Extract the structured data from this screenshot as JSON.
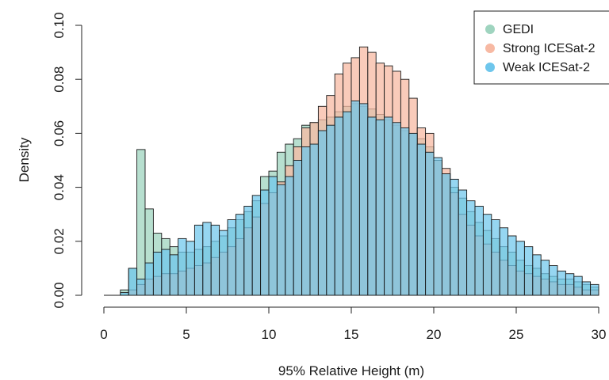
{
  "chart_data": {
    "type": "bar",
    "subtype": "overlaid histogram",
    "xlabel": "95% Relative Height (m)",
    "ylabel": "Density",
    "xlim": [
      0,
      30
    ],
    "ylim": [
      0,
      0.1
    ],
    "xticks": [
      "0",
      "5",
      "10",
      "15",
      "20",
      "25",
      "30"
    ],
    "yticks": [
      "0.00",
      "0.02",
      "0.04",
      "0.06",
      "0.08",
      "0.10"
    ],
    "bin_width": 0.5,
    "grid": false,
    "legend_position": "top-right",
    "series": [
      {
        "name": "GEDI",
        "color": "#9fd4bf",
        "x": [
          0.25,
          0.75,
          1.25,
          1.75,
          2.25,
          2.75,
          3.25,
          3.75,
          4.25,
          4.75,
          5.25,
          5.75,
          6.25,
          6.75,
          7.25,
          7.75,
          8.25,
          8.75,
          9.25,
          9.75,
          10.25,
          10.75,
          11.25,
          11.75,
          12.25,
          12.75,
          13.25,
          13.75,
          14.25,
          14.75,
          15.25,
          15.75,
          16.25,
          16.75,
          17.25,
          17.75,
          18.25,
          18.75,
          19.25,
          19.75,
          20.25,
          20.75,
          21.25,
          21.75,
          22.25,
          22.75,
          23.25,
          23.75,
          24.25,
          24.75,
          25.25,
          25.75,
          26.25,
          26.75,
          27.25,
          27.75,
          28.25,
          28.75,
          29.25,
          29.75
        ],
        "values": [
          0,
          0,
          0.002,
          0.01,
          0.054,
          0.032,
          0.023,
          0.021,
          0.018,
          0.016,
          0.016,
          0.017,
          0.018,
          0.02,
          0.022,
          0.025,
          0.028,
          0.031,
          0.035,
          0.044,
          0.046,
          0.053,
          0.056,
          0.058,
          0.063,
          0.064,
          0.065,
          0.066,
          0.068,
          0.07,
          0.071,
          0.07,
          0.069,
          0.067,
          0.065,
          0.063,
          0.061,
          0.06,
          0.058,
          0.055,
          0.05,
          0.045,
          0.04,
          0.036,
          0.031,
          0.027,
          0.024,
          0.021,
          0.018,
          0.016,
          0.013,
          0.011,
          0.01,
          0.008,
          0.007,
          0.006,
          0.006,
          0.005,
          0.004,
          0.003
        ]
      },
      {
        "name": "Strong ICESat-2",
        "color": "#f7b9a3",
        "x": [
          0.25,
          0.75,
          1.25,
          1.75,
          2.25,
          2.75,
          3.25,
          3.75,
          4.25,
          4.75,
          5.25,
          5.75,
          6.25,
          6.75,
          7.25,
          7.75,
          8.25,
          8.75,
          9.25,
          9.75,
          10.25,
          10.75,
          11.25,
          11.75,
          12.25,
          12.75,
          13.25,
          13.75,
          14.25,
          14.75,
          15.25,
          15.75,
          16.25,
          16.75,
          17.25,
          17.75,
          18.25,
          18.75,
          19.25,
          19.75,
          20.25,
          20.75,
          21.25,
          21.75,
          22.25,
          22.75,
          23.25,
          23.75,
          24.25,
          24.75,
          25.25,
          25.75,
          26.25,
          26.75,
          27.25,
          27.75,
          28.25,
          28.75,
          29.25,
          29.75
        ],
        "values": [
          0,
          0,
          0,
          0.002,
          0.004,
          0.006,
          0.007,
          0.008,
          0.008,
          0.009,
          0.01,
          0.011,
          0.012,
          0.014,
          0.016,
          0.018,
          0.021,
          0.025,
          0.029,
          0.034,
          0.038,
          0.042,
          0.048,
          0.055,
          0.062,
          0.064,
          0.07,
          0.074,
          0.082,
          0.086,
          0.088,
          0.092,
          0.09,
          0.086,
          0.085,
          0.083,
          0.08,
          0.073,
          0.062,
          0.06,
          0.05,
          0.047,
          0.038,
          0.03,
          0.026,
          0.022,
          0.019,
          0.016,
          0.013,
          0.011,
          0.009,
          0.008,
          0.007,
          0.006,
          0.005,
          0.004,
          0.004,
          0.003,
          0.002,
          0.002
        ]
      },
      {
        "name": "Weak ICESat-2",
        "color": "#6ec6ec",
        "x": [
          0.25,
          0.75,
          1.25,
          1.75,
          2.25,
          2.75,
          3.25,
          3.75,
          4.25,
          4.75,
          5.25,
          5.75,
          6.25,
          6.75,
          7.25,
          7.75,
          8.25,
          8.75,
          9.25,
          9.75,
          10.25,
          10.75,
          11.25,
          11.75,
          12.25,
          12.75,
          13.25,
          13.75,
          14.25,
          14.75,
          15.25,
          15.75,
          16.25,
          16.75,
          17.25,
          17.75,
          18.25,
          18.75,
          19.25,
          19.75,
          20.25,
          20.75,
          21.25,
          21.75,
          22.25,
          22.75,
          23.25,
          23.75,
          24.25,
          24.75,
          25.25,
          25.75,
          26.25,
          26.75,
          27.25,
          27.75,
          28.25,
          28.75,
          29.25,
          29.75
        ],
        "values": [
          0,
          0,
          0.001,
          0.01,
          0.006,
          0.012,
          0.016,
          0.017,
          0.015,
          0.021,
          0.02,
          0.026,
          0.027,
          0.026,
          0.024,
          0.028,
          0.03,
          0.033,
          0.037,
          0.039,
          0.044,
          0.041,
          0.044,
          0.05,
          0.055,
          0.056,
          0.061,
          0.063,
          0.066,
          0.068,
          0.072,
          0.071,
          0.066,
          0.065,
          0.066,
          0.064,
          0.062,
          0.06,
          0.056,
          0.053,
          0.051,
          0.045,
          0.043,
          0.039,
          0.035,
          0.033,
          0.03,
          0.028,
          0.025,
          0.022,
          0.02,
          0.018,
          0.015,
          0.013,
          0.011,
          0.009,
          0.008,
          0.007,
          0.005,
          0.004
        ]
      }
    ]
  }
}
